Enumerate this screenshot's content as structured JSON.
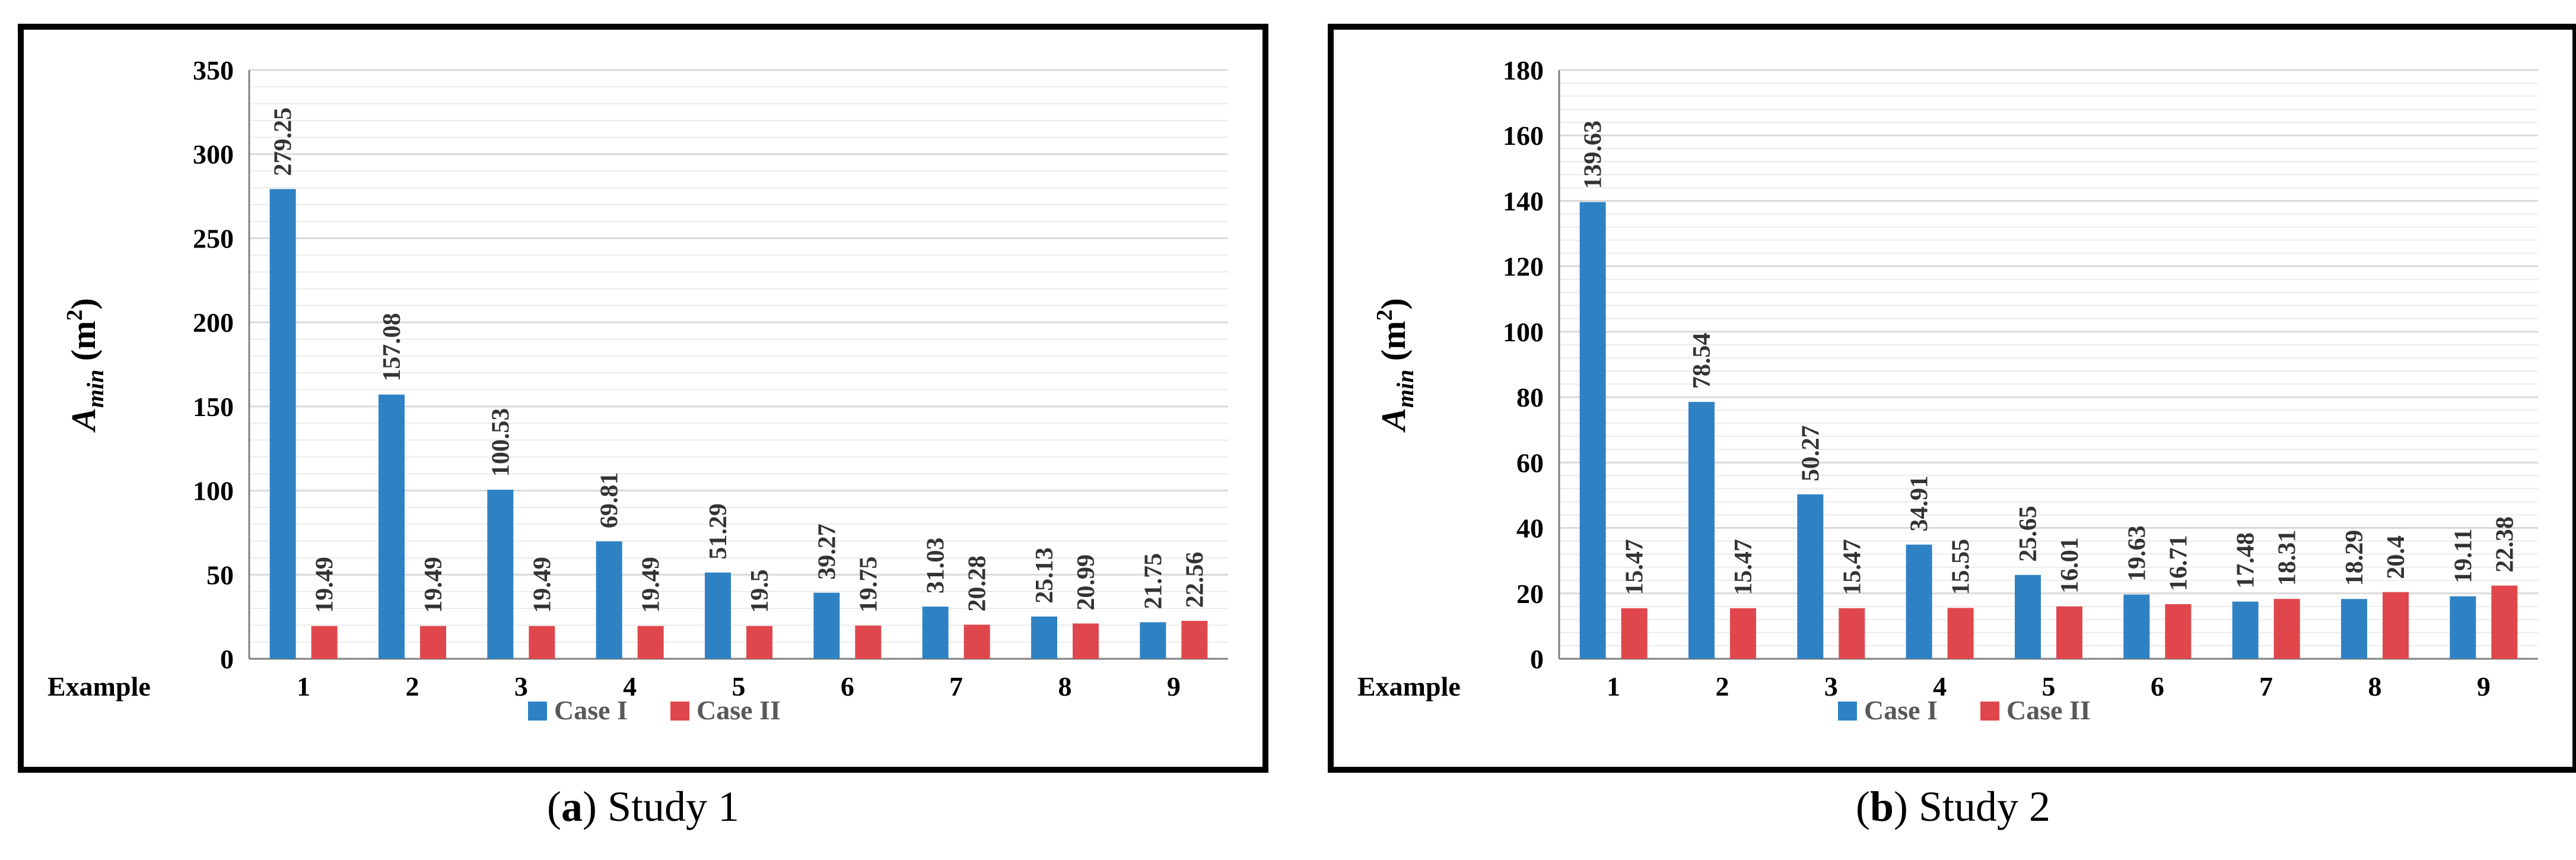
{
  "colors": {
    "case1": "#2E82C4",
    "case2": "#E0474C",
    "grid": "#D9D9D9",
    "axis": "#808080"
  },
  "chart_data": [
    {
      "type": "bar",
      "categories": [
        "1",
        "2",
        "3",
        "4",
        "5",
        "6",
        "7",
        "8",
        "9"
      ],
      "category_axis_label": "Example",
      "ylabel_main": "A",
      "ylabel_sub": "min",
      "ylabel_unit_pre": " (m",
      "ylabel_unit_sup": "2",
      "ylabel_unit_post": ")",
      "ylim": [
        0,
        350
      ],
      "yticks": [
        0,
        50,
        100,
        150,
        200,
        250,
        300,
        350
      ],
      "grid": true,
      "legend_position": "bottom",
      "series": [
        {
          "name": "Case I",
          "values": [
            279.25,
            157.08,
            100.53,
            69.81,
            51.29,
            39.27,
            31.03,
            25.13,
            21.75
          ],
          "labels": [
            "279.25",
            "157.08",
            "100.53",
            "69.81",
            "51.29",
            "39.27",
            "31.03",
            "25.13",
            "21.75"
          ]
        },
        {
          "name": "Case II",
          "values": [
            19.49,
            19.49,
            19.49,
            19.49,
            19.5,
            19.75,
            20.28,
            20.99,
            22.56
          ],
          "labels": [
            "19.49",
            "19.49",
            "19.49",
            "19.49",
            "19.5",
            "19.75",
            "20.28",
            "20.99",
            "22.56"
          ]
        }
      ]
    },
    {
      "type": "bar",
      "categories": [
        "1",
        "2",
        "3",
        "4",
        "5",
        "6",
        "7",
        "8",
        "9"
      ],
      "category_axis_label": "Example",
      "ylabel_main": "A",
      "ylabel_sub": "min",
      "ylabel_unit_pre": " (m",
      "ylabel_unit_sup": "2",
      "ylabel_unit_post": ")",
      "ylim": [
        0,
        180
      ],
      "yticks": [
        0,
        20,
        40,
        60,
        80,
        100,
        120,
        140,
        160,
        180
      ],
      "grid": true,
      "legend_position": "bottom",
      "series": [
        {
          "name": "Case I",
          "values": [
            139.63,
            78.54,
            50.27,
            34.91,
            25.65,
            19.63,
            17.48,
            18.29,
            19.11
          ],
          "labels": [
            "139.63",
            "78.54",
            "50.27",
            "34.91",
            "25.65",
            "19.63",
            "17.48",
            "18.29",
            "19.11"
          ]
        },
        {
          "name": "Case II",
          "values": [
            15.47,
            15.47,
            15.47,
            15.55,
            16.01,
            16.71,
            18.31,
            20.4,
            22.38
          ],
          "labels": [
            "15.47",
            "15.47",
            "15.47",
            "15.55",
            "16.01",
            "16.71",
            "18.31",
            "20.4",
            "22.38"
          ]
        }
      ]
    }
  ],
  "captions": [
    {
      "letter": "a",
      "text": " Study 1"
    },
    {
      "letter": "b",
      "text": " Study 2"
    }
  ]
}
